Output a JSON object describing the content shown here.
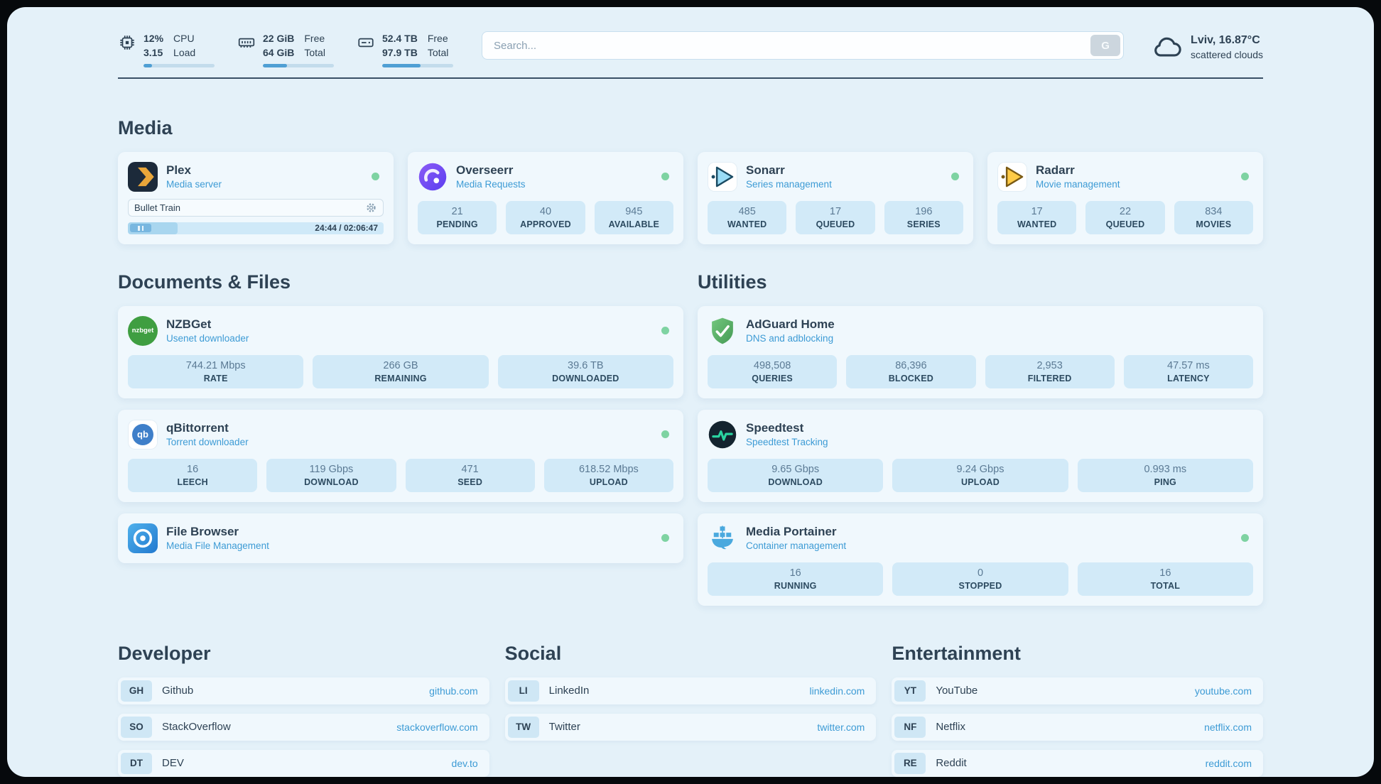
{
  "colors": {
    "accent": "#3d9bd5",
    "status_online": "#7ed3a2",
    "background": "#e4f1f9",
    "heading": "#2e4254"
  },
  "topbar": {
    "cpu": {
      "value1": "12%",
      "value2": "3.15",
      "label1": "CPU",
      "label2": "Load",
      "progress": 12
    },
    "ram": {
      "value1": "22 GiB",
      "value2": "64 GiB",
      "label1": "Free",
      "label2": "Total",
      "progress": 34
    },
    "disk": {
      "value1": "52.4 TB",
      "value2": "97.9 TB",
      "label1": "Free",
      "label2": "Total",
      "progress": 54
    },
    "search": {
      "placeholder": "Search...",
      "button_label": "G"
    },
    "weather": {
      "location": "Lviv, 16.87°C",
      "condition": "scattered clouds"
    }
  },
  "media": {
    "title": "Media",
    "plex": {
      "name": "Plex",
      "subtitle": "Media server",
      "now_playing": "Bullet Train",
      "time": "24:44 / 02:06:47",
      "progress": 19.5
    },
    "overseerr": {
      "name": "Overseerr",
      "subtitle": "Media Requests",
      "stats": [
        {
          "value": "21",
          "label": "PENDING"
        },
        {
          "value": "40",
          "label": "APPROVED"
        },
        {
          "value": "945",
          "label": "AVAILABLE"
        }
      ]
    },
    "sonarr": {
      "name": "Sonarr",
      "subtitle": "Series management",
      "stats": [
        {
          "value": "485",
          "label": "WANTED"
        },
        {
          "value": "17",
          "label": "QUEUED"
        },
        {
          "value": "196",
          "label": "SERIES"
        }
      ]
    },
    "radarr": {
      "name": "Radarr",
      "subtitle": "Movie management",
      "stats": [
        {
          "value": "17",
          "label": "WANTED"
        },
        {
          "value": "22",
          "label": "QUEUED"
        },
        {
          "value": "834",
          "label": "MOVIES"
        }
      ]
    }
  },
  "documents": {
    "title": "Documents & Files",
    "nzbget": {
      "name": "NZBGet",
      "subtitle": "Usenet downloader",
      "icon_text": "nzbget",
      "stats": [
        {
          "value": "744.21 Mbps",
          "label": "RATE"
        },
        {
          "value": "266 GB",
          "label": "REMAINING"
        },
        {
          "value": "39.6 TB",
          "label": "DOWNLOADED"
        }
      ]
    },
    "qbittorrent": {
      "name": "qBittorrent",
      "subtitle": "Torrent downloader",
      "icon_text": "qb",
      "stats": [
        {
          "value": "16",
          "label": "LEECH"
        },
        {
          "value": "119 Gbps",
          "label": "DOWNLOAD"
        },
        {
          "value": "471",
          "label": "SEED"
        },
        {
          "value": "618.52 Mbps",
          "label": "UPLOAD"
        }
      ]
    },
    "filebrowser": {
      "name": "File Browser",
      "subtitle": "Media File Management"
    }
  },
  "utilities": {
    "title": "Utilities",
    "adguard": {
      "name": "AdGuard Home",
      "subtitle": "DNS and adblocking",
      "stats": [
        {
          "value": "498,508",
          "label": "QUERIES"
        },
        {
          "value": "86,396",
          "label": "BLOCKED"
        },
        {
          "value": "2,953",
          "label": "FILTERED"
        },
        {
          "value": "47.57 ms",
          "label": "LATENCY"
        }
      ]
    },
    "speedtest": {
      "name": "Speedtest",
      "subtitle": "Speedtest Tracking",
      "stats": [
        {
          "value": "9.65 Gbps",
          "label": "DOWNLOAD"
        },
        {
          "value": "9.24 Gbps",
          "label": "UPLOAD"
        },
        {
          "value": "0.993 ms",
          "label": "PING"
        }
      ]
    },
    "portainer": {
      "name": "Media Portainer",
      "subtitle": "Container management",
      "stats": [
        {
          "value": "16",
          "label": "RUNNING"
        },
        {
          "value": "0",
          "label": "STOPPED"
        },
        {
          "value": "16",
          "label": "TOTAL"
        }
      ]
    }
  },
  "bookmarks": {
    "developer": {
      "title": "Developer",
      "items": [
        {
          "abbr": "GH",
          "name": "Github",
          "url": "github.com"
        },
        {
          "abbr": "SO",
          "name": "StackOverflow",
          "url": "stackoverflow.com"
        },
        {
          "abbr": "DT",
          "name": "DEV",
          "url": "dev.to"
        }
      ]
    },
    "social": {
      "title": "Social",
      "items": [
        {
          "abbr": "LI",
          "name": "LinkedIn",
          "url": "linkedin.com"
        },
        {
          "abbr": "TW",
          "name": "Twitter",
          "url": "twitter.com"
        }
      ]
    },
    "entertainment": {
      "title": "Entertainment",
      "items": [
        {
          "abbr": "YT",
          "name": "YouTube",
          "url": "youtube.com"
        },
        {
          "abbr": "NF",
          "name": "Netflix",
          "url": "netflix.com"
        },
        {
          "abbr": "RE",
          "name": "Reddit",
          "url": "reddit.com"
        }
      ]
    }
  }
}
